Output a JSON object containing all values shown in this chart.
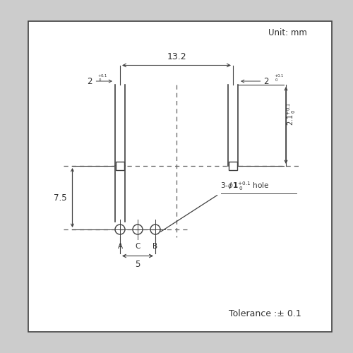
{
  "bg_color": "#cccccc",
  "box_color": "#ffffff",
  "line_color": "#404040",
  "dash_color": "#606060",
  "text_color": "#303030",
  "unit_text": "Unit: mm",
  "tolerance_text": "Tolerance :± 0.1",
  "dim_13_2": "13.2",
  "dim_7_5": "7.5",
  "dim_2_1": "2.1",
  "dim_5": "5",
  "labels_ACB": [
    "A",
    "C",
    "B"
  ],
  "figsize": [
    5.0,
    5.0
  ],
  "dpi": 100
}
